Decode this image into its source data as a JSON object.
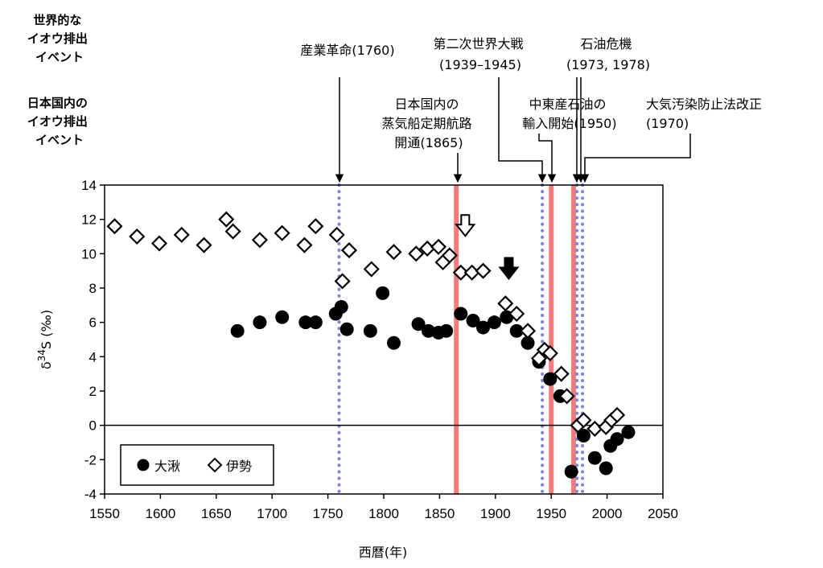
{
  "chart_data": {
    "type": "scatter",
    "xlabel": "西暦(年)",
    "ylabel": "δ34S (‰)",
    "ylabel_parts": {
      "pre": "δ",
      "sup": "34",
      "post": "S (‰)"
    },
    "xlim": [
      1550,
      2050
    ],
    "ylim": [
      -4,
      14
    ],
    "xticks": [
      1550,
      1600,
      1650,
      1700,
      1750,
      1800,
      1850,
      1900,
      1950,
      2000,
      2050
    ],
    "yticks": [
      -4,
      -2,
      0,
      2,
      4,
      6,
      8,
      10,
      12,
      14
    ],
    "series": [
      {
        "name": "大湫",
        "marker": "filled-circle",
        "color": "#000000",
        "points": [
          [
            1669,
            5.5
          ],
          [
            1689,
            6.0
          ],
          [
            1709,
            6.3
          ],
          [
            1730,
            6.0
          ],
          [
            1739,
            6.0
          ],
          [
            1757,
            6.5
          ],
          [
            1762,
            6.9
          ],
          [
            1767,
            5.6
          ],
          [
            1788,
            5.5
          ],
          [
            1799,
            7.7
          ],
          [
            1809,
            4.8
          ],
          [
            1831,
            5.9
          ],
          [
            1840,
            5.5
          ],
          [
            1849,
            5.4
          ],
          [
            1856,
            5.5
          ],
          [
            1869,
            6.5
          ],
          [
            1880,
            6.1
          ],
          [
            1889,
            5.7
          ],
          [
            1899,
            6.0
          ],
          [
            1910,
            6.3
          ],
          [
            1919,
            5.5
          ],
          [
            1929,
            4.8
          ],
          [
            1939,
            3.7
          ],
          [
            1949,
            2.7
          ],
          [
            1958,
            1.7
          ],
          [
            1968,
            -2.7
          ],
          [
            1979,
            -0.6
          ],
          [
            1989,
            -1.9
          ],
          [
            1999,
            -2.5
          ],
          [
            2003,
            -1.2
          ],
          [
            2009,
            -0.8
          ],
          [
            2019,
            -0.4
          ]
        ]
      },
      {
        "name": "伊勢",
        "marker": "open-diamond",
        "color": "#000000",
        "points": [
          [
            1559,
            11.6
          ],
          [
            1579,
            11.0
          ],
          [
            1599,
            10.6
          ],
          [
            1619,
            11.1
          ],
          [
            1639,
            10.5
          ],
          [
            1659,
            12.0
          ],
          [
            1665,
            11.3
          ],
          [
            1689,
            10.8
          ],
          [
            1709,
            11.2
          ],
          [
            1729,
            10.5
          ],
          [
            1739,
            11.6
          ],
          [
            1758,
            11.1
          ],
          [
            1763,
            8.4
          ],
          [
            1769,
            10.2
          ],
          [
            1789,
            9.1
          ],
          [
            1809,
            10.1
          ],
          [
            1829,
            10.0
          ],
          [
            1839,
            10.3
          ],
          [
            1849,
            10.4
          ],
          [
            1853,
            9.5
          ],
          [
            1859,
            9.9
          ],
          [
            1869,
            8.9
          ],
          [
            1879,
            8.9
          ],
          [
            1889,
            9.0
          ],
          [
            1909,
            7.1
          ],
          [
            1919,
            6.5
          ],
          [
            1929,
            5.5
          ],
          [
            1939,
            3.9
          ],
          [
            1944,
            4.4
          ],
          [
            1949,
            4.2
          ],
          [
            1959,
            3.0
          ],
          [
            1964,
            1.7
          ],
          [
            1974,
            0.0
          ],
          [
            1979,
            0.3
          ],
          [
            1989,
            -0.2
          ],
          [
            1999,
            -0.1
          ],
          [
            2004,
            0.3
          ],
          [
            2009,
            0.6
          ]
        ]
      }
    ],
    "event_lines": [
      {
        "year": 1760,
        "kind": "global"
      },
      {
        "year": 1865,
        "kind": "domestic"
      },
      {
        "year": 1942,
        "kind": "global"
      },
      {
        "year": 1950,
        "kind": "domestic"
      },
      {
        "year": 1970,
        "kind": "domestic"
      },
      {
        "year": 1973,
        "kind": "global"
      },
      {
        "year": 1978,
        "kind": "global"
      }
    ],
    "annotation_arrows": [
      {
        "year": 1873,
        "value": 11.6,
        "style": "hollow"
      },
      {
        "year": 1912,
        "value": 9.1,
        "style": "filled"
      }
    ],
    "legend": {
      "position": "bottom-left",
      "entries": [
        "大湫",
        "伊勢"
      ]
    },
    "category_legend": {
      "global": {
        "lines": [
          "世界的な",
          "イオウ排出",
          "イベント"
        ],
        "color": "#0000cc"
      },
      "domestic": {
        "lines": [
          "日本国内の",
          "イオウ排出",
          "イベント"
        ],
        "color": "#e8191e"
      }
    },
    "events": [
      {
        "lines": [
          "産業革命(1760)"
        ]
      },
      {
        "lines": [
          "日本国内の",
          "蒸気船定期航路",
          "開通(1865)"
        ]
      },
      {
        "lines": [
          "第二次世界大戦",
          "(1939–1945)"
        ]
      },
      {
        "lines": [
          "中東産石油の",
          "輸入開始(1950)"
        ]
      },
      {
        "lines": [
          "石油危機",
          "(1973, 1978)"
        ]
      },
      {
        "lines": [
          "大気汚染防止法改正",
          "(1970)"
        ]
      }
    ],
    "colors": {
      "global_line": "#7b83e8",
      "domestic_line": "#f27b7b"
    }
  }
}
